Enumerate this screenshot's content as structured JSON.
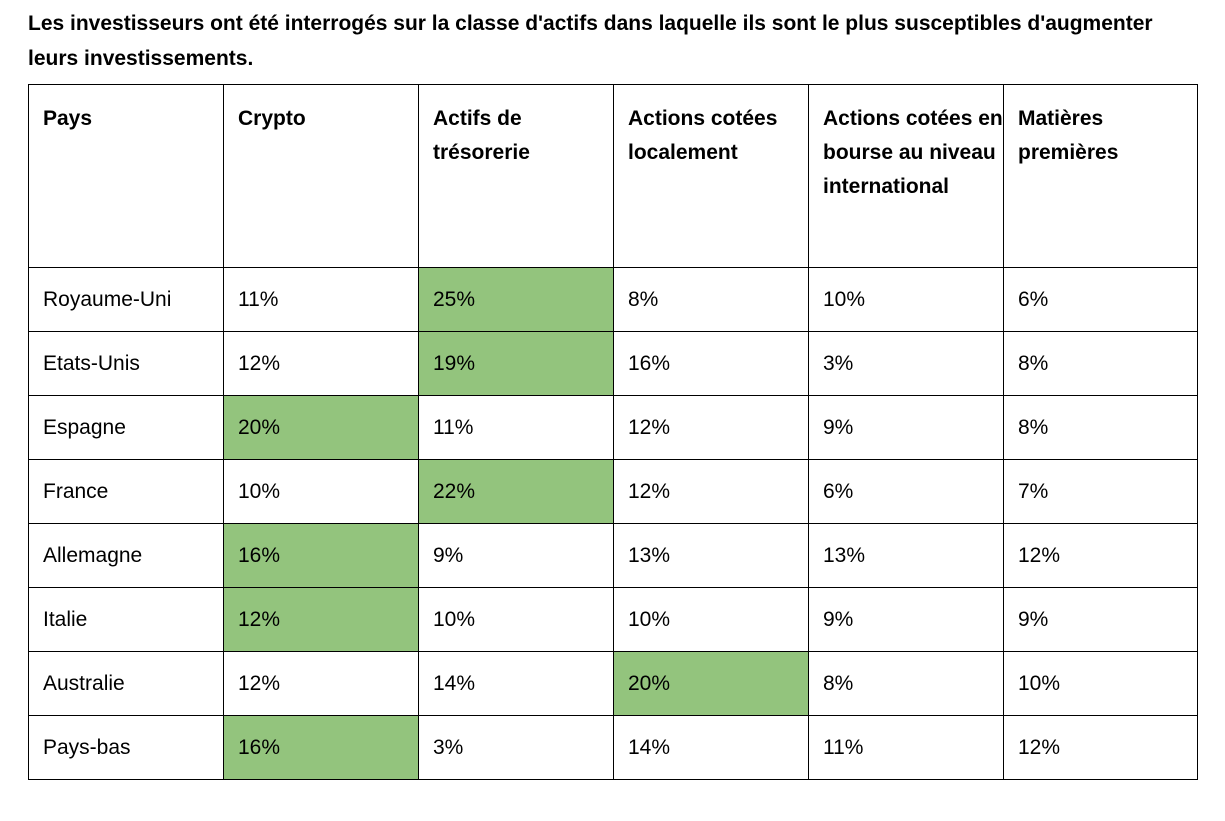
{
  "title": "Les investisseurs ont été interrogés sur la classe d'actifs dans laquelle ils sont le plus susceptibles d'augmenter leurs investissements.",
  "highlight_color": "#93c47d",
  "headers": [
    "Pays",
    "Crypto",
    "Actifs de trésorerie",
    "Actions cotées localement",
    "Actions cotées en bourse au niveau international",
    "Matières premières"
  ],
  "rows": [
    {
      "cells": [
        "Royaume-Uni",
        "11%",
        "25%",
        "8%",
        "10%",
        "6%"
      ],
      "highlight": 2
    },
    {
      "cells": [
        "Etats-Unis",
        "12%",
        "19%",
        "16%",
        "3%",
        "8%"
      ],
      "highlight": 2
    },
    {
      "cells": [
        "Espagne",
        "20%",
        "11%",
        "12%",
        "9%",
        "8%"
      ],
      "highlight": 1
    },
    {
      "cells": [
        "France",
        "10%",
        "22%",
        "12%",
        "6%",
        "7%"
      ],
      "highlight": 2
    },
    {
      "cells": [
        "Allemagne",
        "16%",
        "9%",
        "13%",
        "13%",
        "12%"
      ],
      "highlight": 1
    },
    {
      "cells": [
        "Italie",
        "12%",
        "10%",
        "10%",
        "9%",
        "9%"
      ],
      "highlight": 1
    },
    {
      "cells": [
        "Australie",
        "12%",
        "14%",
        "20%",
        "8%",
        "10%"
      ],
      "highlight": 3
    },
    {
      "cells": [
        "Pays-bas",
        "16%",
        "3%",
        "14%",
        "11%",
        "12%"
      ],
      "highlight": 1
    }
  ]
}
